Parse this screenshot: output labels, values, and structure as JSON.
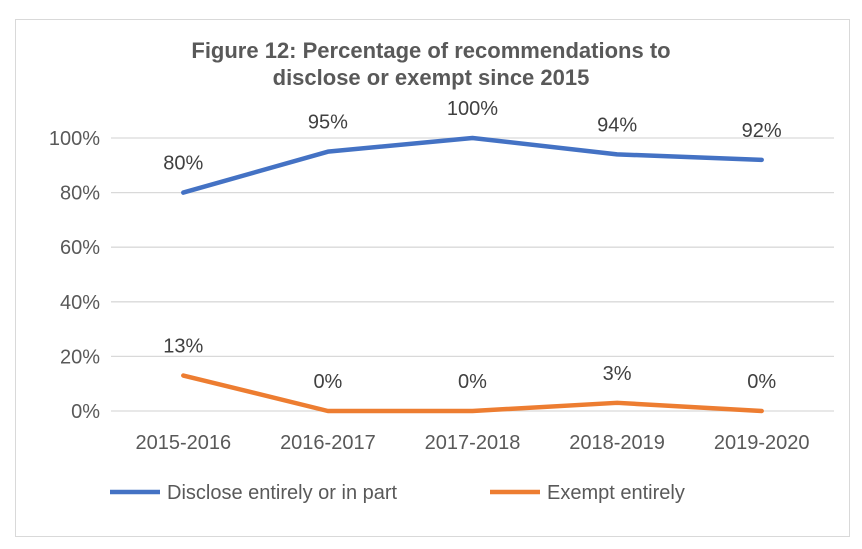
{
  "chart_data": {
    "type": "line",
    "title": "Figure 12: Percentage of recommendations to disclose or exempt since 2015",
    "title_lines": [
      "Figure 12: Percentage of recommendations to",
      "disclose or exempt since 2015"
    ],
    "categories": [
      "2015-2016",
      "2016-2017",
      "2017-2018",
      "2018-2019",
      "2019-2020"
    ],
    "series": [
      {
        "name": "Disclose entirely or in part",
        "values": [
          80,
          95,
          100,
          94,
          92
        ],
        "labels": [
          "80%",
          "95%",
          "100%",
          "94%",
          "92%"
        ],
        "color": "#4472C4"
      },
      {
        "name": "Exempt entirely",
        "values": [
          13,
          0,
          0,
          3,
          0
        ],
        "labels": [
          "13%",
          "0%",
          "0%",
          "3%",
          "0%"
        ],
        "color": "#ED7D31"
      }
    ],
    "yticks": [
      "0%",
      "20%",
      "40%",
      "60%",
      "80%",
      "100%"
    ],
    "ytick_values": [
      0,
      20,
      40,
      60,
      80,
      100
    ],
    "ylim": [
      0,
      100
    ],
    "xlabel": "",
    "ylabel": "",
    "grid": true,
    "legend_position": "bottom",
    "gridline_color": "#D9D9D9"
  }
}
